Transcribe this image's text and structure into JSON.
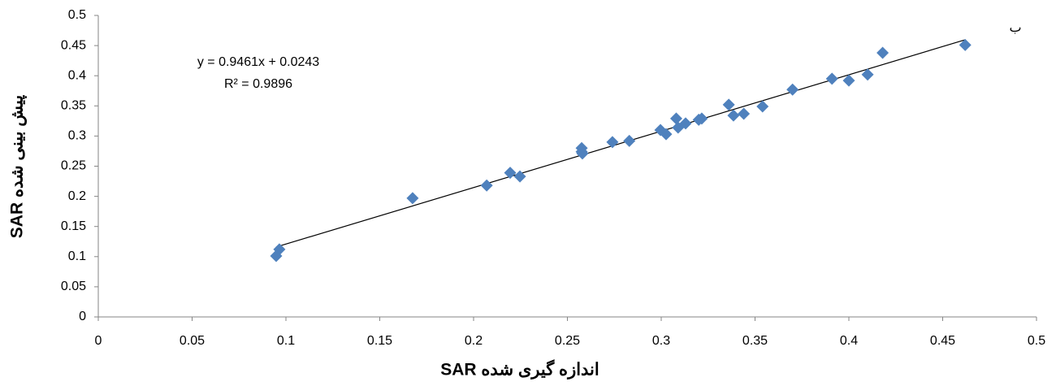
{
  "chart_data": {
    "type": "scatter",
    "x_label": "اندازه گیری شده SAR",
    "y_label": "پیش بینی شده SAR",
    "annotation": "ب",
    "trendline": {
      "equation": "y = 0.9461x + 0.0243",
      "r2": "R² = 0.9896"
    },
    "xlim": [
      0,
      0.5
    ],
    "xticks": [
      0,
      0.05,
      0.1,
      0.15,
      0.2,
      0.25,
      0.3,
      0.35,
      0.4,
      0.45,
      0.5
    ],
    "ylim": [
      0,
      0.5
    ],
    "yticks": [
      0,
      0.05,
      0.1,
      0.15,
      0.2,
      0.25,
      0.3,
      0.35,
      0.4,
      0.45,
      0.5
    ],
    "grid": false,
    "series": [
      {
        "color": "#4f81bd",
        "x": [
          0.0948,
          0.0965,
          0.1675,
          0.207,
          0.2195,
          0.2247,
          0.2576,
          0.2576,
          0.258,
          0.274,
          0.283,
          0.2996,
          0.3026,
          0.308,
          0.309,
          0.313,
          0.32,
          0.3216,
          0.336,
          0.3385,
          0.344,
          0.354,
          0.37,
          0.391,
          0.4,
          0.41,
          0.418,
          0.462
        ],
        "values": [
          0.101,
          0.112,
          0.197,
          0.218,
          0.239,
          0.233,
          0.28,
          0.274,
          0.271,
          0.29,
          0.292,
          0.31,
          0.303,
          0.329,
          0.314,
          0.321,
          0.327,
          0.329,
          0.352,
          0.334,
          0.337,
          0.349,
          0.377,
          0.395,
          0.392,
          0.402,
          0.438,
          0.451
        ]
      }
    ]
  }
}
